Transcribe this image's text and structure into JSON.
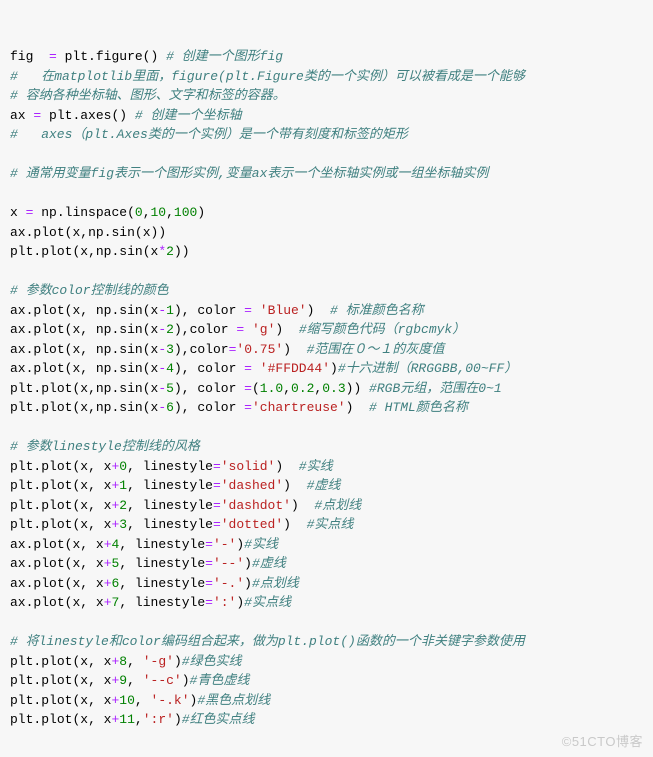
{
  "meta": {
    "language": "python",
    "fontsize": 13,
    "background_color": "#f7f7f7",
    "colors": {
      "default": "#000000",
      "operator": "#aa22ff",
      "comment": "#408080",
      "number": "#008000",
      "string": "#ba2121"
    },
    "watermark": "©51CTO博客"
  },
  "lines": [
    [
      [
        "def",
        "fig  "
      ],
      [
        "op",
        "="
      ],
      [
        "def",
        " plt"
      ],
      [
        "punc",
        "."
      ],
      [
        "def",
        "figure"
      ],
      [
        "punc",
        "() "
      ],
      [
        "com",
        "# 创建一个图形fig"
      ]
    ],
    [
      [
        "com",
        "#   在matplotlib里面，figure(plt.Figure类的一个实例）可以被看成是一个能够"
      ]
    ],
    [
      [
        "com",
        "# 容纳各种坐标轴、图形、文字和标签的容器。"
      ]
    ],
    [
      [
        "def",
        "ax "
      ],
      [
        "op",
        "="
      ],
      [
        "def",
        " plt"
      ],
      [
        "punc",
        "."
      ],
      [
        "def",
        "axes"
      ],
      [
        "punc",
        "() "
      ],
      [
        "com",
        "# 创建一个坐标轴"
      ]
    ],
    [
      [
        "com",
        "#   axes（plt.Axes类的一个实例）是一个带有刻度和标签的矩形"
      ]
    ],
    [
      [
        "def",
        ""
      ]
    ],
    [
      [
        "com",
        "# 通常用变量fig表示一个图形实例,变量ax表示一个坐标轴实例或一组坐标轴实例"
      ]
    ],
    [
      [
        "def",
        ""
      ]
    ],
    [
      [
        "def",
        "x "
      ],
      [
        "op",
        "="
      ],
      [
        "def",
        " np"
      ],
      [
        "punc",
        "."
      ],
      [
        "def",
        "linspace"
      ],
      [
        "punc",
        "("
      ],
      [
        "num",
        "0"
      ],
      [
        "punc",
        ","
      ],
      [
        "num",
        "10"
      ],
      [
        "punc",
        ","
      ],
      [
        "num",
        "100"
      ],
      [
        "punc",
        ")"
      ]
    ],
    [
      [
        "def",
        "ax"
      ],
      [
        "punc",
        "."
      ],
      [
        "def",
        "plot"
      ],
      [
        "punc",
        "("
      ],
      [
        "def",
        "x"
      ],
      [
        "punc",
        ","
      ],
      [
        "def",
        "np"
      ],
      [
        "punc",
        "."
      ],
      [
        "def",
        "sin"
      ],
      [
        "punc",
        "("
      ],
      [
        "def",
        "x"
      ],
      [
        "punc",
        "))"
      ]
    ],
    [
      [
        "def",
        "plt"
      ],
      [
        "punc",
        "."
      ],
      [
        "def",
        "plot"
      ],
      [
        "punc",
        "("
      ],
      [
        "def",
        "x"
      ],
      [
        "punc",
        ","
      ],
      [
        "def",
        "np"
      ],
      [
        "punc",
        "."
      ],
      [
        "def",
        "sin"
      ],
      [
        "punc",
        "("
      ],
      [
        "def",
        "x"
      ],
      [
        "op",
        "*"
      ],
      [
        "num",
        "2"
      ],
      [
        "punc",
        "))"
      ]
    ],
    [
      [
        "def",
        ""
      ]
    ],
    [
      [
        "com",
        "# 参数color控制线的颜色"
      ]
    ],
    [
      [
        "def",
        "ax"
      ],
      [
        "punc",
        "."
      ],
      [
        "def",
        "plot"
      ],
      [
        "punc",
        "("
      ],
      [
        "def",
        "x"
      ],
      [
        "punc",
        ", "
      ],
      [
        "def",
        "np"
      ],
      [
        "punc",
        "."
      ],
      [
        "def",
        "sin"
      ],
      [
        "punc",
        "("
      ],
      [
        "def",
        "x"
      ],
      [
        "op",
        "-"
      ],
      [
        "num",
        "1"
      ],
      [
        "punc",
        "), "
      ],
      [
        "def",
        "color "
      ],
      [
        "op",
        "="
      ],
      [
        "def",
        " "
      ],
      [
        "str",
        "'Blue'"
      ],
      [
        "punc",
        ")  "
      ],
      [
        "com",
        "# 标准颜色名称"
      ]
    ],
    [
      [
        "def",
        "ax"
      ],
      [
        "punc",
        "."
      ],
      [
        "def",
        "plot"
      ],
      [
        "punc",
        "("
      ],
      [
        "def",
        "x"
      ],
      [
        "punc",
        ", "
      ],
      [
        "def",
        "np"
      ],
      [
        "punc",
        "."
      ],
      [
        "def",
        "sin"
      ],
      [
        "punc",
        "("
      ],
      [
        "def",
        "x"
      ],
      [
        "op",
        "-"
      ],
      [
        "num",
        "2"
      ],
      [
        "punc",
        "),"
      ],
      [
        "def",
        "color "
      ],
      [
        "op",
        "="
      ],
      [
        "def",
        " "
      ],
      [
        "str",
        "'g'"
      ],
      [
        "punc",
        ")  "
      ],
      [
        "com",
        "#缩写颜色代码（rgbcmyk）"
      ]
    ],
    [
      [
        "def",
        "ax"
      ],
      [
        "punc",
        "."
      ],
      [
        "def",
        "plot"
      ],
      [
        "punc",
        "("
      ],
      [
        "def",
        "x"
      ],
      [
        "punc",
        ", "
      ],
      [
        "def",
        "np"
      ],
      [
        "punc",
        "."
      ],
      [
        "def",
        "sin"
      ],
      [
        "punc",
        "("
      ],
      [
        "def",
        "x"
      ],
      [
        "op",
        "-"
      ],
      [
        "num",
        "3"
      ],
      [
        "punc",
        "),"
      ],
      [
        "def",
        "color"
      ],
      [
        "op",
        "="
      ],
      [
        "str",
        "'0.75'"
      ],
      [
        "punc",
        ")  "
      ],
      [
        "com",
        "#范围在０～１的灰度值"
      ]
    ],
    [
      [
        "def",
        "ax"
      ],
      [
        "punc",
        "."
      ],
      [
        "def",
        "plot"
      ],
      [
        "punc",
        "("
      ],
      [
        "def",
        "x"
      ],
      [
        "punc",
        ", "
      ],
      [
        "def",
        "np"
      ],
      [
        "punc",
        "."
      ],
      [
        "def",
        "sin"
      ],
      [
        "punc",
        "("
      ],
      [
        "def",
        "x"
      ],
      [
        "op",
        "-"
      ],
      [
        "num",
        "4"
      ],
      [
        "punc",
        "), "
      ],
      [
        "def",
        "color "
      ],
      [
        "op",
        "="
      ],
      [
        "def",
        " "
      ],
      [
        "str",
        "'#FFDD44'"
      ],
      [
        "punc",
        ")"
      ],
      [
        "com",
        "#十六进制（RRGGBB,00~FF）"
      ]
    ],
    [
      [
        "def",
        "plt"
      ],
      [
        "punc",
        "."
      ],
      [
        "def",
        "plot"
      ],
      [
        "punc",
        "("
      ],
      [
        "def",
        "x"
      ],
      [
        "punc",
        ","
      ],
      [
        "def",
        "np"
      ],
      [
        "punc",
        "."
      ],
      [
        "def",
        "sin"
      ],
      [
        "punc",
        "("
      ],
      [
        "def",
        "x"
      ],
      [
        "op",
        "-"
      ],
      [
        "num",
        "5"
      ],
      [
        "punc",
        "), "
      ],
      [
        "def",
        "color "
      ],
      [
        "op",
        "="
      ],
      [
        "punc",
        "("
      ],
      [
        "num",
        "1.0"
      ],
      [
        "punc",
        ","
      ],
      [
        "num",
        "0.2"
      ],
      [
        "punc",
        ","
      ],
      [
        "num",
        "0.3"
      ],
      [
        "punc",
        ")) "
      ],
      [
        "com",
        "#RGB元组，范围在0~1"
      ]
    ],
    [
      [
        "def",
        "plt"
      ],
      [
        "punc",
        "."
      ],
      [
        "def",
        "plot"
      ],
      [
        "punc",
        "("
      ],
      [
        "def",
        "x"
      ],
      [
        "punc",
        ","
      ],
      [
        "def",
        "np"
      ],
      [
        "punc",
        "."
      ],
      [
        "def",
        "sin"
      ],
      [
        "punc",
        "("
      ],
      [
        "def",
        "x"
      ],
      [
        "op",
        "-"
      ],
      [
        "num",
        "6"
      ],
      [
        "punc",
        "), "
      ],
      [
        "def",
        "color "
      ],
      [
        "op",
        "="
      ],
      [
        "str",
        "'chartreuse'"
      ],
      [
        "punc",
        ")  "
      ],
      [
        "com",
        "# HTML颜色名称"
      ]
    ],
    [
      [
        "def",
        ""
      ]
    ],
    [
      [
        "com",
        "# 参数linestyle控制线的风格"
      ]
    ],
    [
      [
        "def",
        "plt"
      ],
      [
        "punc",
        "."
      ],
      [
        "def",
        "plot"
      ],
      [
        "punc",
        "("
      ],
      [
        "def",
        "x"
      ],
      [
        "punc",
        ", "
      ],
      [
        "def",
        "x"
      ],
      [
        "op",
        "+"
      ],
      [
        "num",
        "0"
      ],
      [
        "punc",
        ", "
      ],
      [
        "def",
        "linestyle"
      ],
      [
        "op",
        "="
      ],
      [
        "str",
        "'solid'"
      ],
      [
        "punc",
        ")  "
      ],
      [
        "com",
        "#实线"
      ]
    ],
    [
      [
        "def",
        "plt"
      ],
      [
        "punc",
        "."
      ],
      [
        "def",
        "plot"
      ],
      [
        "punc",
        "("
      ],
      [
        "def",
        "x"
      ],
      [
        "punc",
        ", "
      ],
      [
        "def",
        "x"
      ],
      [
        "op",
        "+"
      ],
      [
        "num",
        "1"
      ],
      [
        "punc",
        ", "
      ],
      [
        "def",
        "linestyle"
      ],
      [
        "op",
        "="
      ],
      [
        "str",
        "'dashed'"
      ],
      [
        "punc",
        ")  "
      ],
      [
        "com",
        "#虚线"
      ]
    ],
    [
      [
        "def",
        "plt"
      ],
      [
        "punc",
        "."
      ],
      [
        "def",
        "plot"
      ],
      [
        "punc",
        "("
      ],
      [
        "def",
        "x"
      ],
      [
        "punc",
        ", "
      ],
      [
        "def",
        "x"
      ],
      [
        "op",
        "+"
      ],
      [
        "num",
        "2"
      ],
      [
        "punc",
        ", "
      ],
      [
        "def",
        "linestyle"
      ],
      [
        "op",
        "="
      ],
      [
        "str",
        "'dashdot'"
      ],
      [
        "punc",
        ")  "
      ],
      [
        "com",
        "#点划线"
      ]
    ],
    [
      [
        "def",
        "plt"
      ],
      [
        "punc",
        "."
      ],
      [
        "def",
        "plot"
      ],
      [
        "punc",
        "("
      ],
      [
        "def",
        "x"
      ],
      [
        "punc",
        ", "
      ],
      [
        "def",
        "x"
      ],
      [
        "op",
        "+"
      ],
      [
        "num",
        "3"
      ],
      [
        "punc",
        ", "
      ],
      [
        "def",
        "linestyle"
      ],
      [
        "op",
        "="
      ],
      [
        "str",
        "'dotted'"
      ],
      [
        "punc",
        ")  "
      ],
      [
        "com",
        "#实点线"
      ]
    ],
    [
      [
        "def",
        "ax"
      ],
      [
        "punc",
        "."
      ],
      [
        "def",
        "plot"
      ],
      [
        "punc",
        "("
      ],
      [
        "def",
        "x"
      ],
      [
        "punc",
        ", "
      ],
      [
        "def",
        "x"
      ],
      [
        "op",
        "+"
      ],
      [
        "num",
        "4"
      ],
      [
        "punc",
        ", "
      ],
      [
        "def",
        "linestyle"
      ],
      [
        "op",
        "="
      ],
      [
        "str",
        "'-'"
      ],
      [
        "punc",
        ")"
      ],
      [
        "com",
        "#实线"
      ]
    ],
    [
      [
        "def",
        "ax"
      ],
      [
        "punc",
        "."
      ],
      [
        "def",
        "plot"
      ],
      [
        "punc",
        "("
      ],
      [
        "def",
        "x"
      ],
      [
        "punc",
        ", "
      ],
      [
        "def",
        "x"
      ],
      [
        "op",
        "+"
      ],
      [
        "num",
        "5"
      ],
      [
        "punc",
        ", "
      ],
      [
        "def",
        "linestyle"
      ],
      [
        "op",
        "="
      ],
      [
        "str",
        "'--'"
      ],
      [
        "punc",
        ")"
      ],
      [
        "com",
        "#虚线"
      ]
    ],
    [
      [
        "def",
        "ax"
      ],
      [
        "punc",
        "."
      ],
      [
        "def",
        "plot"
      ],
      [
        "punc",
        "("
      ],
      [
        "def",
        "x"
      ],
      [
        "punc",
        ", "
      ],
      [
        "def",
        "x"
      ],
      [
        "op",
        "+"
      ],
      [
        "num",
        "6"
      ],
      [
        "punc",
        ", "
      ],
      [
        "def",
        "linestyle"
      ],
      [
        "op",
        "="
      ],
      [
        "str",
        "'-.'"
      ],
      [
        "punc",
        ")"
      ],
      [
        "com",
        "#点划线"
      ]
    ],
    [
      [
        "def",
        "ax"
      ],
      [
        "punc",
        "."
      ],
      [
        "def",
        "plot"
      ],
      [
        "punc",
        "("
      ],
      [
        "def",
        "x"
      ],
      [
        "punc",
        ", "
      ],
      [
        "def",
        "x"
      ],
      [
        "op",
        "+"
      ],
      [
        "num",
        "7"
      ],
      [
        "punc",
        ", "
      ],
      [
        "def",
        "linestyle"
      ],
      [
        "op",
        "="
      ],
      [
        "str",
        "':'"
      ],
      [
        "punc",
        ")"
      ],
      [
        "com",
        "#实点线"
      ]
    ],
    [
      [
        "def",
        ""
      ]
    ],
    [
      [
        "com",
        "# 将linestyle和color编码组合起来，做为plt.plot()函数的一个非关键字参数使用"
      ]
    ],
    [
      [
        "def",
        "plt"
      ],
      [
        "punc",
        "."
      ],
      [
        "def",
        "plot"
      ],
      [
        "punc",
        "("
      ],
      [
        "def",
        "x"
      ],
      [
        "punc",
        ", "
      ],
      [
        "def",
        "x"
      ],
      [
        "op",
        "+"
      ],
      [
        "num",
        "8"
      ],
      [
        "punc",
        ", "
      ],
      [
        "str",
        "'-g'"
      ],
      [
        "punc",
        ")"
      ],
      [
        "com",
        "#绿色实线"
      ]
    ],
    [
      [
        "def",
        "plt"
      ],
      [
        "punc",
        "."
      ],
      [
        "def",
        "plot"
      ],
      [
        "punc",
        "("
      ],
      [
        "def",
        "x"
      ],
      [
        "punc",
        ", "
      ],
      [
        "def",
        "x"
      ],
      [
        "op",
        "+"
      ],
      [
        "num",
        "9"
      ],
      [
        "punc",
        ", "
      ],
      [
        "str",
        "'--c'"
      ],
      [
        "punc",
        ")"
      ],
      [
        "com",
        "#青色虚线"
      ]
    ],
    [
      [
        "def",
        "plt"
      ],
      [
        "punc",
        "."
      ],
      [
        "def",
        "plot"
      ],
      [
        "punc",
        "("
      ],
      [
        "def",
        "x"
      ],
      [
        "punc",
        ", "
      ],
      [
        "def",
        "x"
      ],
      [
        "op",
        "+"
      ],
      [
        "num",
        "10"
      ],
      [
        "punc",
        ", "
      ],
      [
        "str",
        "'-.k'"
      ],
      [
        "punc",
        ")"
      ],
      [
        "com",
        "#黑色点划线"
      ]
    ],
    [
      [
        "def",
        "plt"
      ],
      [
        "punc",
        "."
      ],
      [
        "def",
        "plot"
      ],
      [
        "punc",
        "("
      ],
      [
        "def",
        "x"
      ],
      [
        "punc",
        ", "
      ],
      [
        "def",
        "x"
      ],
      [
        "op",
        "+"
      ],
      [
        "num",
        "11"
      ],
      [
        "punc",
        ","
      ],
      [
        "str",
        "':r'"
      ],
      [
        "punc",
        ")"
      ],
      [
        "com",
        "#红色实点线"
      ]
    ]
  ]
}
